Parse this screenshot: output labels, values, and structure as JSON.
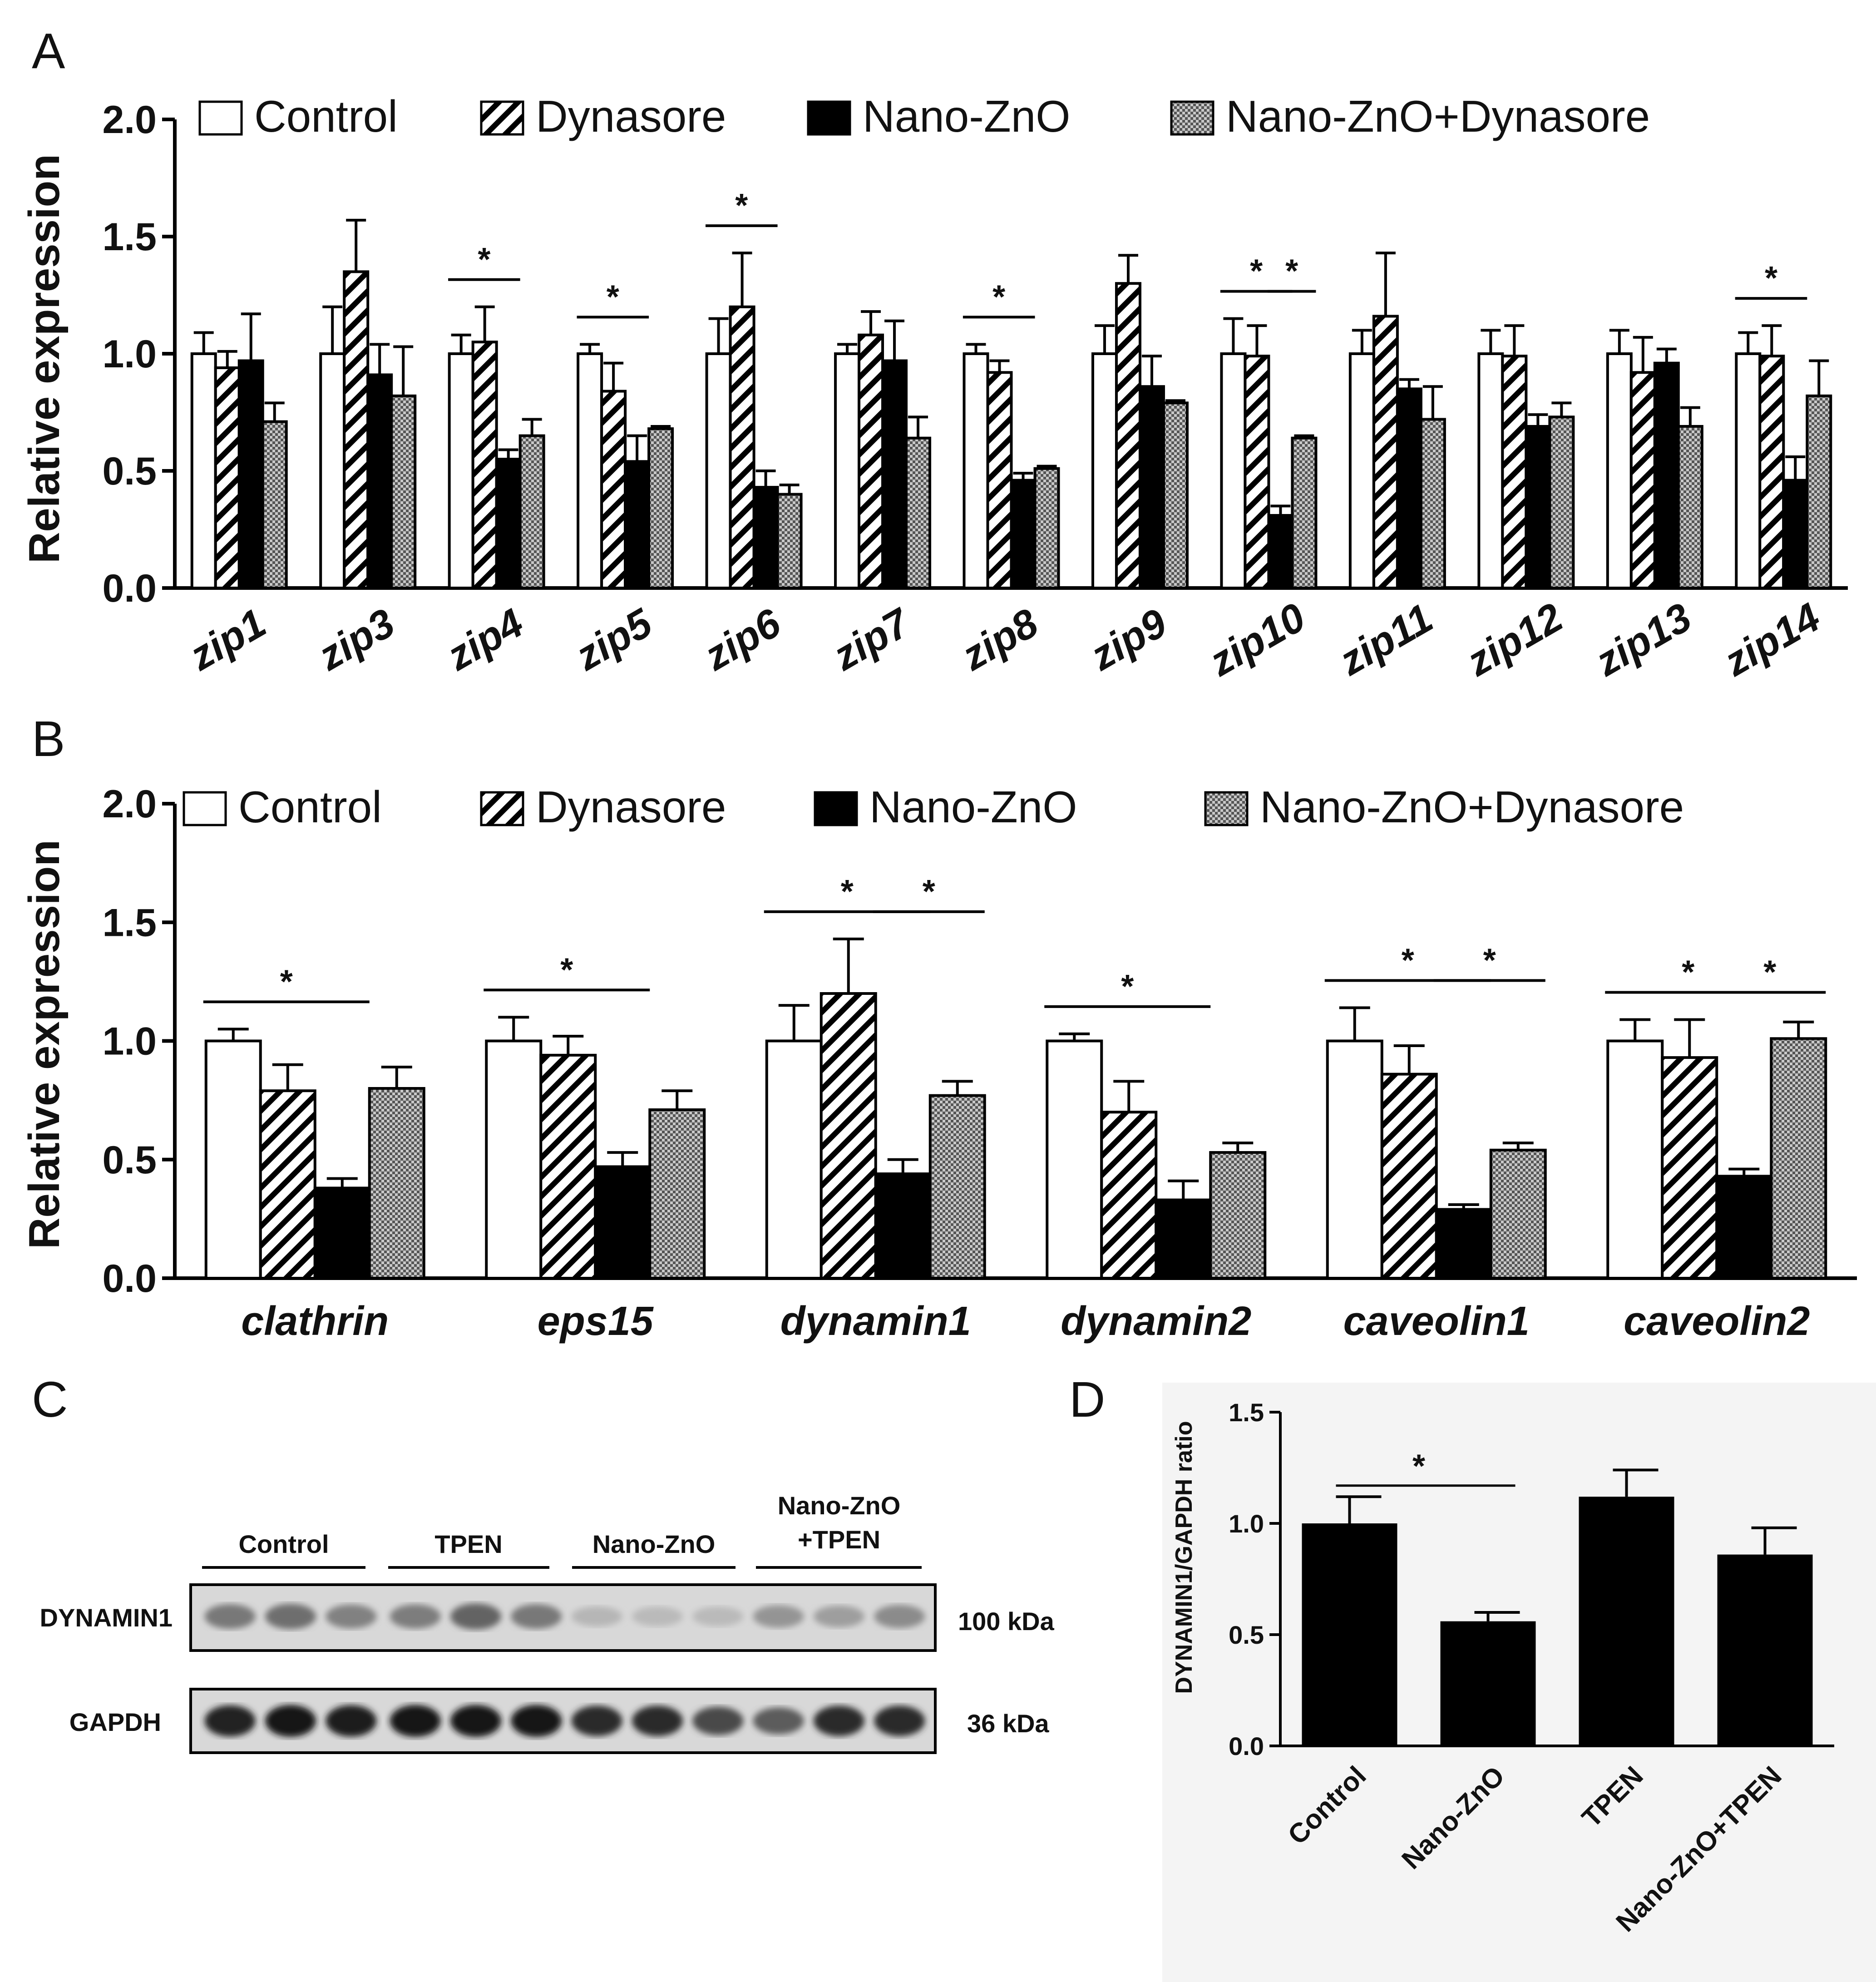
{
  "panel_letters": [
    "A",
    "B",
    "C",
    "D"
  ],
  "chart_data": [
    {
      "type": "bar",
      "panel": "A",
      "ylabel": "Relative expression",
      "ylim": [
        0,
        2.0
      ],
      "yticks": [
        "0.0",
        "0.5",
        "1.0",
        "1.5",
        "2.0"
      ],
      "legend": [
        "Control",
        "Dynasore",
        "Nano-ZnO",
        "Nano-ZnO+Dynasore"
      ],
      "categories": [
        "zip1",
        "zip3",
        "zip4",
        "zip5",
        "zip6",
        "zip7",
        "zip8",
        "zip9",
        "zip10",
        "zip11",
        "zip12",
        "zip13",
        "zip14"
      ],
      "series": [
        {
          "name": "Control",
          "pattern": "open",
          "values": [
            1.0,
            1.0,
            1.0,
            1.0,
            1.0,
            1.0,
            1.0,
            1.0,
            1.0,
            1.0,
            1.0,
            1.0,
            1.0
          ],
          "errors": [
            0.09,
            0.2,
            0.08,
            0.04,
            0.15,
            0.04,
            0.04,
            0.12,
            0.15,
            0.1,
            0.1,
            0.1,
            0.09
          ]
        },
        {
          "name": "Dynasore",
          "pattern": "hatched",
          "values": [
            0.94,
            1.35,
            1.05,
            0.84,
            1.2,
            1.08,
            0.92,
            1.3,
            0.99,
            1.16,
            0.99,
            0.92,
            0.99
          ],
          "errors": [
            0.07,
            0.22,
            0.15,
            0.12,
            0.23,
            0.1,
            0.05,
            0.12,
            0.13,
            0.27,
            0.13,
            0.15,
            0.13
          ]
        },
        {
          "name": "Nano-ZnO",
          "pattern": "solid",
          "values": [
            0.97,
            0.91,
            0.55,
            0.54,
            0.43,
            0.97,
            0.46,
            0.86,
            0.31,
            0.85,
            0.69,
            0.96,
            0.46
          ],
          "errors": [
            0.2,
            0.13,
            0.04,
            0.11,
            0.07,
            0.17,
            0.03,
            0.13,
            0.04,
            0.04,
            0.05,
            0.06,
            0.1
          ]
        },
        {
          "name": "Nano-ZnO+Dynasore",
          "pattern": "dotted",
          "values": [
            0.71,
            0.82,
            0.65,
            0.68,
            0.4,
            0.64,
            0.51,
            0.79,
            0.64,
            0.72,
            0.73,
            0.69,
            0.82
          ],
          "errors": [
            0.08,
            0.21,
            0.07,
            0.01,
            0.04,
            0.09,
            0.01,
            0.01,
            0.01,
            0.14,
            0.06,
            0.08,
            0.15
          ]
        }
      ],
      "significance": [
        {
          "category": "zip4",
          "from": 0,
          "to": 2,
          "label": "*"
        },
        {
          "category": "zip5",
          "from": 0,
          "to": 2,
          "label": "*"
        },
        {
          "category": "zip6",
          "from": 0,
          "to": 2,
          "label": "*"
        },
        {
          "category": "zip8",
          "from": 0,
          "to": 2,
          "label": "*"
        },
        {
          "category": "zip10",
          "from": 0,
          "to": 2,
          "label": "*"
        },
        {
          "category": "zip10",
          "from": 2,
          "to": 3,
          "label": "*"
        },
        {
          "category": "zip14",
          "from": 0,
          "to": 2,
          "label": "*"
        }
      ]
    },
    {
      "type": "bar",
      "panel": "B",
      "ylabel": "Relative expression",
      "ylim": [
        0,
        2.0
      ],
      "yticks": [
        "0.0",
        "0.5",
        "1.0",
        "1.5",
        "2.0"
      ],
      "legend": [
        "Control",
        "Dynasore",
        "Nano-ZnO",
        "Nano-ZnO+Dynasore"
      ],
      "categories": [
        "clathrin",
        "eps15",
        "dynamin1",
        "dynamin2",
        "caveolin1",
        "caveolin2"
      ],
      "series": [
        {
          "name": "Control",
          "pattern": "open",
          "values": [
            1.0,
            1.0,
            1.0,
            1.0,
            1.0,
            1.0
          ],
          "errors": [
            0.05,
            0.1,
            0.15,
            0.03,
            0.14,
            0.09
          ]
        },
        {
          "name": "Dynasore",
          "pattern": "hatched",
          "values": [
            0.79,
            0.94,
            1.2,
            0.7,
            0.86,
            0.93
          ],
          "errors": [
            0.11,
            0.08,
            0.23,
            0.13,
            0.12,
            0.16
          ]
        },
        {
          "name": "Nano-ZnO",
          "pattern": "solid",
          "values": [
            0.38,
            0.47,
            0.44,
            0.33,
            0.29,
            0.43
          ],
          "errors": [
            0.04,
            0.06,
            0.06,
            0.08,
            0.02,
            0.03
          ]
        },
        {
          "name": "Nano-ZnO+Dynasore",
          "pattern": "dotted",
          "values": [
            0.8,
            0.71,
            0.77,
            0.53,
            0.54,
            1.01
          ],
          "errors": [
            0.09,
            0.08,
            0.06,
            0.04,
            0.03,
            0.07
          ]
        }
      ],
      "significance": [
        {
          "category": "clathrin",
          "from": 0,
          "to": 2,
          "label": "*"
        },
        {
          "category": "eps15",
          "from": 0,
          "to": 2,
          "label": "*"
        },
        {
          "category": "dynamin1",
          "from": 0,
          "to": 2,
          "label": "*"
        },
        {
          "category": "dynamin1",
          "from": 2,
          "to": 3,
          "label": "*"
        },
        {
          "category": "dynamin2",
          "from": 0,
          "to": 2,
          "label": "*"
        },
        {
          "category": "caveolin1",
          "from": 0,
          "to": 2,
          "label": "*"
        },
        {
          "category": "caveolin1",
          "from": 2,
          "to": 3,
          "label": "*"
        },
        {
          "category": "caveolin2",
          "from": 0,
          "to": 2,
          "label": "*"
        },
        {
          "category": "caveolin2",
          "from": 2,
          "to": 3,
          "label": "*"
        }
      ]
    },
    {
      "type": "bar",
      "panel": "D",
      "ylabel": "DYNAMIN1/GAPDH ratio",
      "ylim": [
        0,
        1.5
      ],
      "yticks": [
        "0.0",
        "0.5",
        "1.0",
        "1.5"
      ],
      "categories": [
        "Control",
        "Nano-ZnO",
        "TPEN",
        "Nano-ZnO+TPEN"
      ],
      "values": [
        1.0,
        0.56,
        1.12,
        0.86
      ],
      "errors": [
        0.12,
        0.04,
        0.12,
        0.12
      ],
      "significance": [
        {
          "from": 0,
          "to": 1,
          "label": "*"
        }
      ]
    }
  ],
  "western_blot": {
    "groups": [
      "Control",
      "TPEN",
      "Nano-ZnO"
    ],
    "group4_line1": "Nano-ZnO",
    "group4_line2": "+TPEN",
    "rows": [
      {
        "protein": "DYNAMIN1",
        "size": "100 kDa",
        "intensities": [
          0.45,
          0.5,
          0.4,
          0.42,
          0.55,
          0.45,
          0.12,
          0.1,
          0.1,
          0.3,
          0.25,
          0.35
        ]
      },
      {
        "protein": "GAPDH",
        "size": "36 kDa",
        "intensities": [
          0.9,
          0.95,
          0.92,
          0.95,
          0.95,
          0.95,
          0.85,
          0.85,
          0.7,
          0.6,
          0.85,
          0.85
        ]
      }
    ]
  },
  "colors": {
    "bar_outline": "#000000",
    "solid": "#000000",
    "open": "#ffffff",
    "dotted_fill": "#9a9a9a",
    "blot_bg": "#d6d6d6",
    "panel_d_bg": "#f4f4f4"
  }
}
